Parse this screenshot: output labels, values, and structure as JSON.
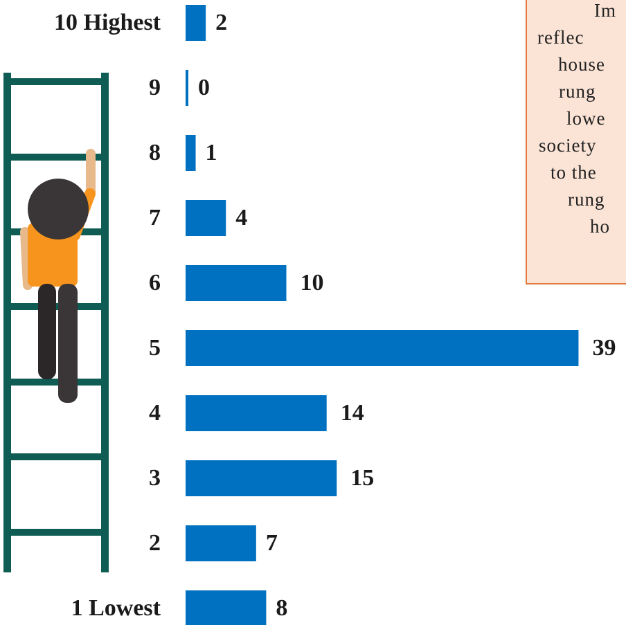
{
  "chart_data": {
    "type": "bar",
    "orientation": "horizontal",
    "categories": [
      "10 Highest",
      "9",
      "8",
      "7",
      "6",
      "5",
      "4",
      "3",
      "2",
      "1 Lowest"
    ],
    "values": [
      2,
      0,
      1,
      4,
      10,
      39,
      14,
      15,
      7,
      8
    ],
    "color": "#0070c0",
    "annotation_lines": [
      "Im",
      "reflec",
      "house",
      "rung",
      "lowe",
      "society",
      "to the",
      "rung",
      "ho"
    ]
  }
}
